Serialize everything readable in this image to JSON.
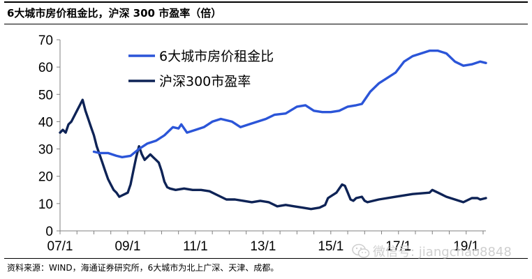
{
  "title": "6大城市房价租金比，沪深 300 市盈率（倍）",
  "source_note": "资料来源：WIND，海通证券研究所，6大城市为北上广深、天津、成都。",
  "watermark": {
    "text": "微信号: jiangchao8848",
    "icon": "wechat-icon"
  },
  "colors": {
    "rent_ratio": "#2b55d8",
    "pe_ratio": "#0e2356",
    "axis": "#808080"
  },
  "chart_data": {
    "type": "line",
    "xlabel": "",
    "ylabel": "",
    "ylim": [
      0,
      70
    ],
    "yticks": [
      0,
      10,
      20,
      30,
      40,
      50,
      60,
      70
    ],
    "xlim": [
      "2007-01",
      "2019-08"
    ],
    "xtick_labels": [
      "07/1",
      "09/1",
      "11/1",
      "13/1",
      "15/1",
      "17/1",
      "19/1"
    ],
    "xtick_dates": [
      "2007-01",
      "2009-01",
      "2011-01",
      "2013-01",
      "2015-01",
      "2017-01",
      "2019-01"
    ],
    "grid": false,
    "legend": "top-left",
    "series": [
      {
        "name": "6大城市房价租金比",
        "points": [
          [
            "2008-01",
            29
          ],
          [
            "2008-03",
            28.5
          ],
          [
            "2008-06",
            28.5
          ],
          [
            "2008-09",
            27.5
          ],
          [
            "2008-11",
            27
          ],
          [
            "2009-02",
            27.5
          ],
          [
            "2009-05",
            30
          ],
          [
            "2009-08",
            32
          ],
          [
            "2009-11",
            33
          ],
          [
            "2010-02",
            35
          ],
          [
            "2010-05",
            38
          ],
          [
            "2010-07",
            37.5
          ],
          [
            "2010-08",
            39
          ],
          [
            "2010-10",
            36
          ],
          [
            "2011-01",
            37
          ],
          [
            "2011-04",
            38
          ],
          [
            "2011-07",
            40
          ],
          [
            "2011-10",
            41
          ],
          [
            "2012-02",
            40
          ],
          [
            "2012-05",
            38
          ],
          [
            "2012-08",
            39
          ],
          [
            "2012-11",
            40
          ],
          [
            "2013-02",
            41
          ],
          [
            "2013-05",
            42.5
          ],
          [
            "2013-09",
            43
          ],
          [
            "2014-01",
            45.5
          ],
          [
            "2014-04",
            46
          ],
          [
            "2014-07",
            44
          ],
          [
            "2014-10",
            43.5
          ],
          [
            "2015-01",
            43.5
          ],
          [
            "2015-04",
            44
          ],
          [
            "2015-07",
            45.5
          ],
          [
            "2015-10",
            46
          ],
          [
            "2015-12",
            46.5
          ],
          [
            "2016-03",
            51
          ],
          [
            "2016-06",
            54
          ],
          [
            "2016-09",
            56
          ],
          [
            "2016-12",
            58
          ],
          [
            "2017-03",
            62
          ],
          [
            "2017-06",
            64
          ],
          [
            "2017-09",
            65
          ],
          [
            "2017-12",
            66
          ],
          [
            "2018-03",
            66
          ],
          [
            "2018-06",
            65
          ],
          [
            "2018-09",
            62
          ],
          [
            "2018-12",
            60.5
          ],
          [
            "2019-03",
            61
          ],
          [
            "2019-06",
            62
          ],
          [
            "2019-08",
            61.5
          ]
        ]
      },
      {
        "name": "沪深300市盈率",
        "points": [
          [
            "2007-01",
            36
          ],
          [
            "2007-02",
            37
          ],
          [
            "2007-03",
            36
          ],
          [
            "2007-04",
            39
          ],
          [
            "2007-05",
            40
          ],
          [
            "2007-06",
            42
          ],
          [
            "2007-07",
            44
          ],
          [
            "2007-08",
            46
          ],
          [
            "2007-09",
            48
          ],
          [
            "2007-10",
            44
          ],
          [
            "2007-11",
            41
          ],
          [
            "2007-12",
            38
          ],
          [
            "2008-01",
            35
          ],
          [
            "2008-02",
            31
          ],
          [
            "2008-03",
            28
          ],
          [
            "2008-04",
            25
          ],
          [
            "2008-05",
            22
          ],
          [
            "2008-06",
            19
          ],
          [
            "2008-07",
            17
          ],
          [
            "2008-08",
            15
          ],
          [
            "2008-09",
            14
          ],
          [
            "2008-10",
            12.5
          ],
          [
            "2008-11",
            13
          ],
          [
            "2008-12",
            13.5
          ],
          [
            "2009-01",
            14
          ],
          [
            "2009-02",
            17
          ],
          [
            "2009-03",
            22
          ],
          [
            "2009-04",
            27
          ],
          [
            "2009-05",
            31
          ],
          [
            "2009-06",
            28
          ],
          [
            "2009-07",
            26
          ],
          [
            "2009-08",
            27
          ],
          [
            "2009-09",
            28
          ],
          [
            "2009-10",
            27
          ],
          [
            "2009-11",
            26
          ],
          [
            "2009-12",
            25
          ],
          [
            "2010-01",
            22
          ],
          [
            "2010-02",
            18
          ],
          [
            "2010-03",
            16
          ],
          [
            "2010-04",
            15.5
          ],
          [
            "2010-06",
            15
          ],
          [
            "2010-09",
            15.5
          ],
          [
            "2010-12",
            15
          ],
          [
            "2011-03",
            15
          ],
          [
            "2011-06",
            14.5
          ],
          [
            "2011-09",
            13
          ],
          [
            "2011-12",
            11.5
          ],
          [
            "2012-03",
            11.5
          ],
          [
            "2012-06",
            11
          ],
          [
            "2012-09",
            10.5
          ],
          [
            "2012-12",
            11
          ],
          [
            "2013-03",
            10.5
          ],
          [
            "2013-06",
            9
          ],
          [
            "2013-09",
            9.5
          ],
          [
            "2013-12",
            9
          ],
          [
            "2014-03",
            8.5
          ],
          [
            "2014-06",
            8
          ],
          [
            "2014-09",
            8.5
          ],
          [
            "2014-11",
            9.5
          ],
          [
            "2014-12",
            12
          ],
          [
            "2015-03",
            14
          ],
          [
            "2015-05",
            17
          ],
          [
            "2015-06",
            16.5
          ],
          [
            "2015-07",
            14
          ],
          [
            "2015-08",
            11.5
          ],
          [
            "2015-09",
            11
          ],
          [
            "2015-10",
            12
          ],
          [
            "2015-12",
            12.5
          ],
          [
            "2016-01",
            11
          ],
          [
            "2016-02",
            10.5
          ],
          [
            "2016-06",
            11.5
          ],
          [
            "2016-12",
            12.5
          ],
          [
            "2017-06",
            13.5
          ],
          [
            "2017-12",
            14
          ],
          [
            "2018-01",
            15
          ],
          [
            "2018-03",
            14
          ],
          [
            "2018-06",
            12.5
          ],
          [
            "2018-09",
            11.5
          ],
          [
            "2018-12",
            10.5
          ],
          [
            "2019-03",
            12
          ],
          [
            "2019-05",
            12
          ],
          [
            "2019-06",
            11.5
          ],
          [
            "2019-08",
            12
          ]
        ]
      }
    ]
  }
}
